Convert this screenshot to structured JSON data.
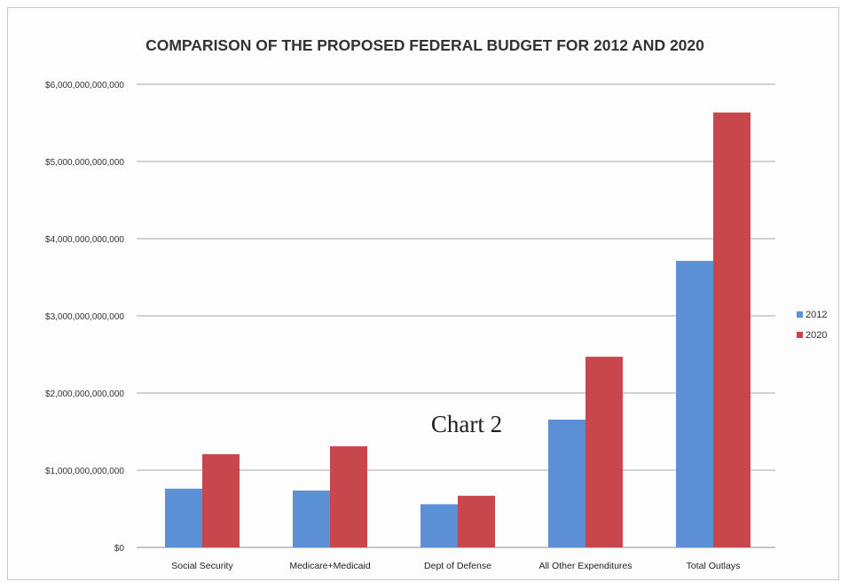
{
  "chart_data": {
    "type": "bar",
    "title": "COMPARISON OF THE PROPOSED FEDERAL BUDGET FOR 2012 AND 2020",
    "categories": [
      "Social Security",
      "Medicare+Medicaid",
      "Dept of Defense",
      "All Other Expenditures",
      "Total Outlays"
    ],
    "series": [
      {
        "name": "2012",
        "color": "#5b8fd6",
        "values": [
          761000000000,
          737000000000,
          559000000000,
          1655000000000,
          3712000000000
        ]
      },
      {
        "name": "2020",
        "color": "#c8474c",
        "values": [
          1208000000000,
          1310000000000,
          669000000000,
          2470000000000,
          5635000000000
        ]
      }
    ],
    "ylim": [
      0,
      6000000000000
    ],
    "yticks": [
      0,
      1000000000000,
      2000000000000,
      3000000000000,
      4000000000000,
      5000000000000,
      6000000000000
    ],
    "ytick_labels": [
      "$0",
      "$1,000,000,000,000",
      "$2,000,000,000,000",
      "$3,000,000,000,000",
      "$4,000,000,000,000",
      "$5,000,000,000,000",
      "$6,000,000,000,000"
    ],
    "grid": true,
    "legend_position": "right",
    "annotation": "Chart 2"
  }
}
